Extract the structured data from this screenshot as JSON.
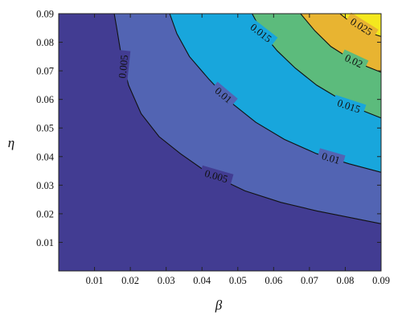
{
  "chart_data": {
    "type": "contour",
    "title": "",
    "xlabel": "β",
    "ylabel": "η",
    "xlim": [
      0,
      0.09
    ],
    "ylim": [
      0,
      0.09
    ],
    "xticks": [
      0.01,
      0.02,
      0.03,
      0.04,
      0.05,
      0.06,
      0.07,
      0.08,
      0.09
    ],
    "yticks": [
      0.01,
      0.02,
      0.03,
      0.04,
      0.05,
      0.06,
      0.07,
      0.08,
      0.09
    ],
    "levels": [
      0.005,
      0.01,
      0.015,
      0.02,
      0.025
    ],
    "fill_colors": [
      "#423c92",
      "#5264b3",
      "#18a6dc",
      "#5cbb7c",
      "#e8b431",
      "#f4e81e"
    ],
    "contours": [
      {
        "level": 0.005,
        "label": "0.005",
        "points": [
          [
            0.0155,
            0.09
          ],
          [
            0.0162,
            0.085
          ],
          [
            0.0175,
            0.075
          ],
          [
            0.0195,
            0.065
          ],
          [
            0.023,
            0.055
          ],
          [
            0.028,
            0.047
          ],
          [
            0.034,
            0.041
          ],
          [
            0.042,
            0.034
          ],
          [
            0.052,
            0.028
          ],
          [
            0.062,
            0.024
          ],
          [
            0.072,
            0.021
          ],
          [
            0.082,
            0.0185
          ],
          [
            0.09,
            0.0165
          ]
        ],
        "label_positions": [
          [
            0.018,
            0.0715,
            -84
          ],
          [
            0.044,
            0.0332,
            16
          ]
        ]
      },
      {
        "level": 0.01,
        "label": "0.01",
        "points": [
          [
            0.031,
            0.09
          ],
          [
            0.033,
            0.083
          ],
          [
            0.0365,
            0.075
          ],
          [
            0.042,
            0.067
          ],
          [
            0.048,
            0.059
          ],
          [
            0.055,
            0.052
          ],
          [
            0.063,
            0.046
          ],
          [
            0.072,
            0.041
          ],
          [
            0.081,
            0.0375
          ],
          [
            0.09,
            0.0345
          ]
        ],
        "label_positions": [
          [
            0.046,
            0.0615,
            40
          ],
          [
            0.076,
            0.0395,
            16
          ]
        ]
      },
      {
        "level": 0.015,
        "label": "0.015",
        "points": [
          [
            0.054,
            0.09
          ],
          [
            0.057,
            0.083
          ],
          [
            0.061,
            0.077
          ],
          [
            0.066,
            0.071
          ],
          [
            0.072,
            0.065
          ],
          [
            0.078,
            0.0605
          ],
          [
            0.084,
            0.0565
          ],
          [
            0.09,
            0.0535
          ]
        ],
        "label_positions": [
          [
            0.0565,
            0.0833,
            38
          ],
          [
            0.081,
            0.0577,
            18
          ]
        ]
      },
      {
        "level": 0.02,
        "label": "0.02",
        "points": [
          [
            0.0675,
            0.09
          ],
          [
            0.0715,
            0.084
          ],
          [
            0.076,
            0.0785
          ],
          [
            0.081,
            0.0745
          ],
          [
            0.086,
            0.0715
          ],
          [
            0.09,
            0.0695
          ]
        ],
        "label_positions": [
          [
            0.0824,
            0.0735,
            25
          ]
        ]
      },
      {
        "level": 0.025,
        "label": "0.025",
        "points": [
          [
            0.0785,
            0.09
          ],
          [
            0.081,
            0.0875
          ],
          [
            0.0845,
            0.085
          ],
          [
            0.0875,
            0.083
          ],
          [
            0.09,
            0.082
          ]
        ],
        "label_positions": [
          [
            0.0845,
            0.0855,
            32
          ]
        ]
      }
    ]
  }
}
